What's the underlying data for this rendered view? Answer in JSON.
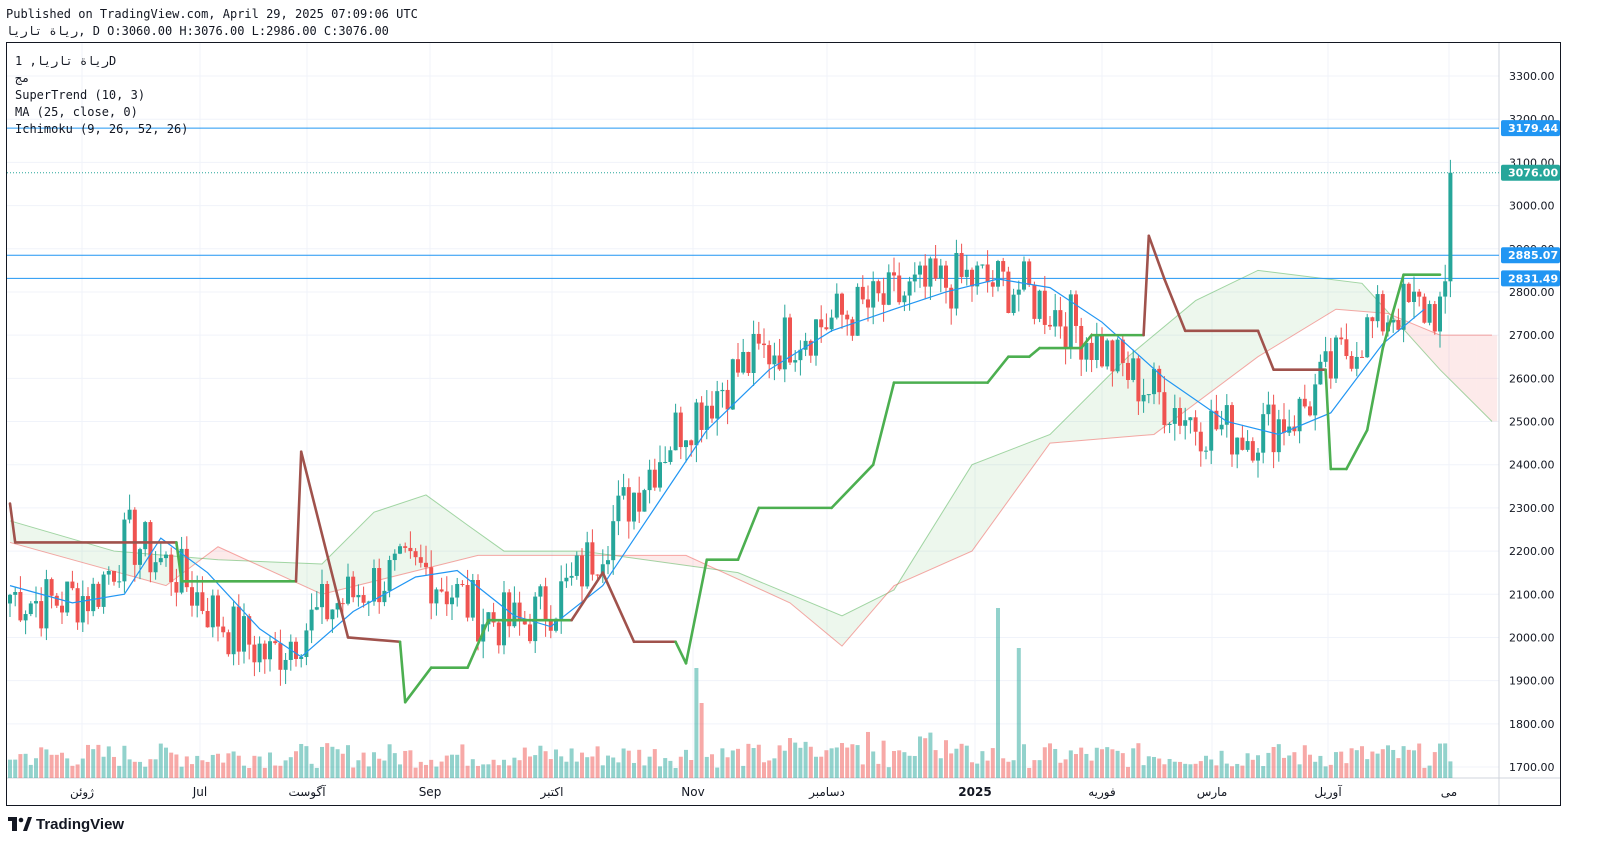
{
  "header": {
    "published": "Published on TradingView.com, April 29, 2025 07:09:06 UTC",
    "ohlc": "رياة تاريا, D O:3060.00 H:3076.00 L:2986.00 C:3076.00"
  },
  "legend": {
    "symbol": "رياة تاريا, 1D",
    "sub": "مج",
    "supertrend": "SuperTrend (10, 3)",
    "ma": "MA (25, close, 0)",
    "ichimoku": "Ichimoku (9, 26, 52, 26)"
  },
  "brand": {
    "name": "TradingView",
    "icon": "tradingview-logo-icon"
  },
  "colors": {
    "up": "#26a69a",
    "down": "#ef5350",
    "supertrend_up": "#4caf50",
    "supertrend_down": "#a0524c",
    "ma": "#2196f3",
    "hline": "#2196f3",
    "last_price": "#26a69a"
  },
  "chart_data": {
    "type": "candlestick",
    "y_axis": {
      "min": 1700,
      "max": 3300,
      "ticks": [
        "3300.00",
        "3200.00",
        "3100.00",
        "3000.00",
        "2900.00",
        "2800.00",
        "2700.00",
        "2600.00",
        "2500.00",
        "2400.00",
        "2300.00",
        "2200.00",
        "2100.00",
        "2000.00",
        "1900.00",
        "1800.00",
        "1700.00"
      ]
    },
    "x_axis": {
      "labels": [
        "ژوئن",
        "Jul",
        "آگوست",
        "Sep",
        "اکتبر",
        "Nov",
        "دسامبر",
        "2025",
        "فوریه",
        "مارس",
        "آوریل",
        "می"
      ]
    },
    "price_lines": [
      {
        "value": 3179.44,
        "label": "3179.44"
      },
      {
        "value": 2885.07,
        "label": "2885.07"
      },
      {
        "value": 2831.49,
        "label": "2831.49"
      }
    ],
    "last_price": {
      "value": 3076.0,
      "label": "3076.00"
    },
    "ma_line": [
      [
        0,
        2120
      ],
      [
        12,
        2080
      ],
      [
        22,
        2100
      ],
      [
        29,
        2230
      ],
      [
        38,
        2150
      ],
      [
        48,
        2020
      ],
      [
        56,
        1955
      ],
      [
        66,
        2060
      ],
      [
        78,
        2140
      ],
      [
        86,
        2155
      ],
      [
        97,
        2050
      ],
      [
        104,
        2025
      ],
      [
        114,
        2120
      ],
      [
        124,
        2300
      ],
      [
        134,
        2480
      ],
      [
        146,
        2620
      ],
      [
        158,
        2710
      ],
      [
        170,
        2760
      ],
      [
        180,
        2800
      ],
      [
        190,
        2830
      ],
      [
        200,
        2810
      ],
      [
        210,
        2730
      ],
      [
        222,
        2600
      ],
      [
        234,
        2500
      ],
      [
        244,
        2470
      ],
      [
        254,
        2520
      ],
      [
        264,
        2680
      ],
      [
        272,
        2760
      ]
    ],
    "supertrend": [
      [
        0,
        2310,
        "down"
      ],
      [
        1,
        2220,
        "down"
      ],
      [
        32,
        2220,
        "down"
      ],
      [
        33,
        2130,
        "up"
      ],
      [
        55,
        2130,
        "up"
      ],
      [
        56,
        2430,
        "down"
      ],
      [
        65,
        2000,
        "down"
      ],
      [
        75,
        1990,
        "down"
      ],
      [
        76,
        1850,
        "up"
      ],
      [
        81,
        1930,
        "up"
      ],
      [
        88,
        1930,
        "up"
      ],
      [
        92,
        2040,
        "up"
      ],
      [
        108,
        2040,
        "up"
      ],
      [
        114,
        2150,
        "down"
      ],
      [
        120,
        1990,
        "down"
      ],
      [
        128,
        1990,
        "down"
      ],
      [
        130,
        1940,
        "up"
      ],
      [
        134,
        2180,
        "up"
      ],
      [
        140,
        2180,
        "up"
      ],
      [
        144,
        2300,
        "up"
      ],
      [
        158,
        2300,
        "up"
      ],
      [
        166,
        2400,
        "up"
      ],
      [
        170,
        2590,
        "up"
      ],
      [
        188,
        2590,
        "up"
      ],
      [
        192,
        2650,
        "up"
      ],
      [
        196,
        2650,
        "up"
      ],
      [
        198,
        2670,
        "up"
      ],
      [
        206,
        2670,
        "up"
      ],
      [
        208,
        2700,
        "up"
      ],
      [
        218,
        2700,
        "up"
      ],
      [
        219,
        2930,
        "down"
      ],
      [
        222,
        2830,
        "down"
      ],
      [
        226,
        2710,
        "down"
      ],
      [
        240,
        2710,
        "down"
      ],
      [
        243,
        2620,
        "down"
      ],
      [
        253,
        2620,
        "down"
      ],
      [
        254,
        2390,
        "up"
      ],
      [
        257,
        2390,
        "up"
      ],
      [
        261,
        2480,
        "up"
      ],
      [
        264,
        2670,
        "up"
      ],
      [
        268,
        2840,
        "up"
      ],
      [
        275,
        2840,
        "up"
      ]
    ]
  }
}
